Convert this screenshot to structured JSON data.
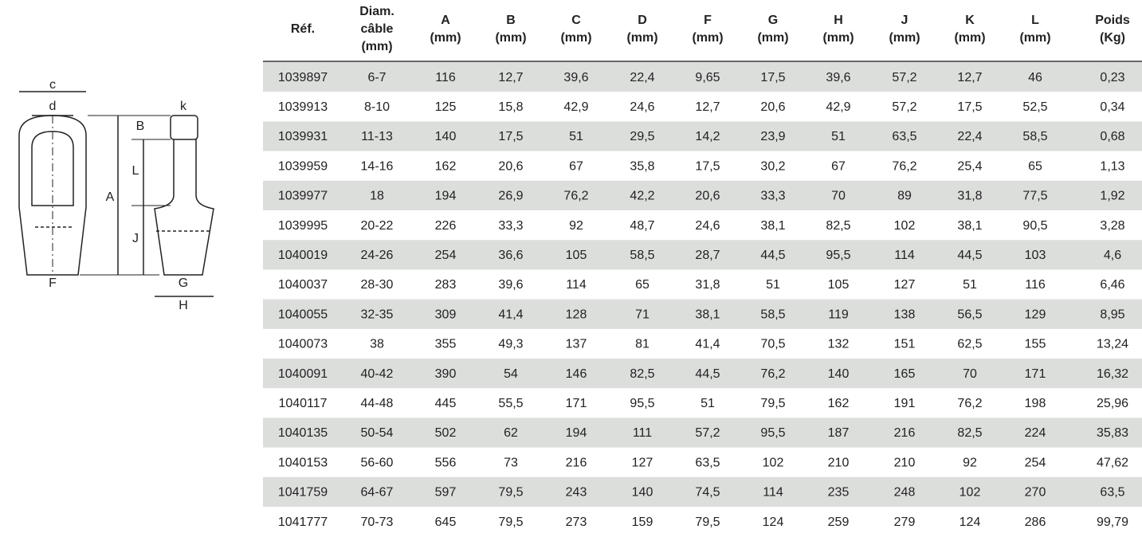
{
  "diagram": {
    "labels": {
      "c": "c",
      "d": "d",
      "k": "k",
      "B": "B",
      "L": "L",
      "A": "A",
      "J": "J",
      "F": "F",
      "G": "G",
      "H": "H"
    }
  },
  "table": {
    "headers": [
      [
        "Réf."
      ],
      [
        "Diam.",
        "câble",
        "(mm)"
      ],
      [
        "A",
        "(mm)"
      ],
      [
        "B",
        "(mm)"
      ],
      [
        "C",
        "(mm)"
      ],
      [
        "D",
        "(mm)"
      ],
      [
        "F",
        "(mm)"
      ],
      [
        "G",
        "(mm)"
      ],
      [
        "H",
        "(mm)"
      ],
      [
        "J",
        "(mm)"
      ],
      [
        "K",
        "(mm)"
      ],
      [
        "L",
        "(mm)"
      ],
      [
        "Poids",
        "(Kg)"
      ]
    ],
    "rows": [
      [
        "1039897",
        "6-7",
        "116",
        "12,7",
        "39,6",
        "22,4",
        "9,65",
        "17,5",
        "39,6",
        "57,2",
        "12,7",
        "46",
        "0,23"
      ],
      [
        "1039913",
        "8-10",
        "125",
        "15,8",
        "42,9",
        "24,6",
        "12,7",
        "20,6",
        "42,9",
        "57,2",
        "17,5",
        "52,5",
        "0,34"
      ],
      [
        "1039931",
        "11-13",
        "140",
        "17,5",
        "51",
        "29,5",
        "14,2",
        "23,9",
        "51",
        "63,5",
        "22,4",
        "58,5",
        "0,68"
      ],
      [
        "1039959",
        "14-16",
        "162",
        "20,6",
        "67",
        "35,8",
        "17,5",
        "30,2",
        "67",
        "76,2",
        "25,4",
        "65",
        "1,13"
      ],
      [
        "1039977",
        "18",
        "194",
        "26,9",
        "76,2",
        "42,2",
        "20,6",
        "33,3",
        "70",
        "89",
        "31,8",
        "77,5",
        "1,92"
      ],
      [
        "1039995",
        "20-22",
        "226",
        "33,3",
        "92",
        "48,7",
        "24,6",
        "38,1",
        "82,5",
        "102",
        "38,1",
        "90,5",
        "3,28"
      ],
      [
        "1040019",
        "24-26",
        "254",
        "36,6",
        "105",
        "58,5",
        "28,7",
        "44,5",
        "95,5",
        "114",
        "44,5",
        "103",
        "4,6"
      ],
      [
        "1040037",
        "28-30",
        "283",
        "39,6",
        "114",
        "65",
        "31,8",
        "51",
        "105",
        "127",
        "51",
        "116",
        "6,46"
      ],
      [
        "1040055",
        "32-35",
        "309",
        "41,4",
        "128",
        "71",
        "38,1",
        "58,5",
        "119",
        "138",
        "56,5",
        "129",
        "8,95"
      ],
      [
        "1040073",
        "38",
        "355",
        "49,3",
        "137",
        "81",
        "41,4",
        "70,5",
        "132",
        "151",
        "62,5",
        "155",
        "13,24"
      ],
      [
        "1040091",
        "40-42",
        "390",
        "54",
        "146",
        "82,5",
        "44,5",
        "76,2",
        "140",
        "165",
        "70",
        "171",
        "16,32"
      ],
      [
        "1040117",
        "44-48",
        "445",
        "55,5",
        "171",
        "95,5",
        "51",
        "79,5",
        "162",
        "191",
        "76,2",
        "198",
        "25,96"
      ],
      [
        "1040135",
        "50-54",
        "502",
        "62",
        "194",
        "111",
        "57,2",
        "95,5",
        "187",
        "216",
        "82,5",
        "224",
        "35,83"
      ],
      [
        "1040153",
        "56-60",
        "556",
        "73",
        "216",
        "127",
        "63,5",
        "102",
        "210",
        "210",
        "92",
        "254",
        "47,62"
      ],
      [
        "1041759",
        "64-67",
        "597",
        "79,5",
        "243",
        "140",
        "74,5",
        "114",
        "235",
        "248",
        "102",
        "270",
        "63,5"
      ],
      [
        "1041777",
        "70-73",
        "645",
        "79,5",
        "273",
        "159",
        "79,5",
        "124",
        "259",
        "279",
        "124",
        "286",
        "99,79"
      ]
    ]
  }
}
